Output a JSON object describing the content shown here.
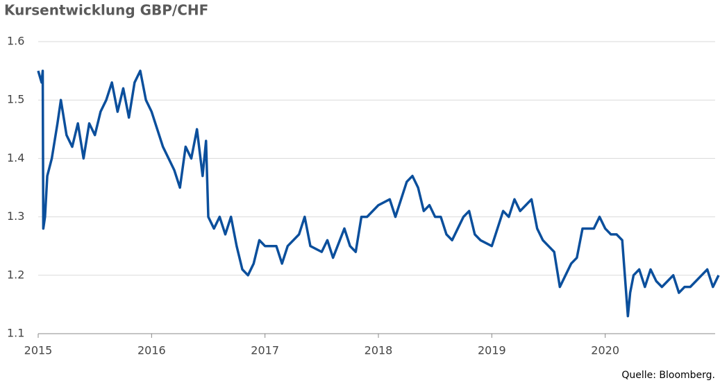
{
  "chart_data": {
    "type": "line",
    "title": "Kursentwicklung GBP/CHF",
    "source": "Quelle: Bloomberg.",
    "x": [
      2015.0,
      2015.03,
      2015.04,
      2015.045,
      2015.06,
      2015.08,
      2015.12,
      2015.17,
      2015.2,
      2015.25,
      2015.3,
      2015.35,
      2015.4,
      2015.45,
      2015.5,
      2015.55,
      2015.6,
      2015.65,
      2015.7,
      2015.75,
      2015.8,
      2015.85,
      2015.9,
      2015.95,
      2016.0,
      2016.05,
      2016.1,
      2016.15,
      2016.2,
      2016.25,
      2016.3,
      2016.35,
      2016.4,
      2016.45,
      2016.48,
      2016.5,
      2016.55,
      2016.6,
      2016.65,
      2016.7,
      2016.75,
      2016.8,
      2016.85,
      2016.9,
      2016.95,
      2017.0,
      2017.1,
      2017.15,
      2017.2,
      2017.3,
      2017.35,
      2017.4,
      2017.5,
      2017.55,
      2017.6,
      2017.7,
      2017.75,
      2017.8,
      2017.85,
      2017.9,
      2018.0,
      2018.1,
      2018.15,
      2018.2,
      2018.25,
      2018.3,
      2018.35,
      2018.4,
      2018.45,
      2018.5,
      2018.55,
      2018.6,
      2018.65,
      2018.7,
      2018.75,
      2018.8,
      2018.85,
      2018.9,
      2019.0,
      2019.05,
      2019.1,
      2019.15,
      2019.2,
      2019.25,
      2019.3,
      2019.35,
      2019.4,
      2019.45,
      2019.5,
      2019.55,
      2019.6,
      2019.65,
      2019.7,
      2019.75,
      2019.8,
      2019.85,
      2019.9,
      2019.95,
      2020.0,
      2020.05,
      2020.1,
      2020.15,
      2020.2,
      2020.22,
      2020.25,
      2020.3,
      2020.35,
      2020.4,
      2020.45,
      2020.5,
      2020.55,
      2020.6,
      2020.65,
      2020.7,
      2020.75,
      2020.8,
      2020.85,
      2020.9,
      2020.95,
      2021.0
    ],
    "series": [
      {
        "color": "#0b4f9c",
        "values": [
          1.55,
          1.53,
          1.55,
          1.28,
          1.3,
          1.37,
          1.4,
          1.46,
          1.5,
          1.44,
          1.42,
          1.46,
          1.4,
          1.46,
          1.44,
          1.48,
          1.5,
          1.53,
          1.48,
          1.52,
          1.47,
          1.53,
          1.55,
          1.5,
          1.48,
          1.45,
          1.42,
          1.4,
          1.38,
          1.35,
          1.42,
          1.4,
          1.45,
          1.37,
          1.43,
          1.3,
          1.28,
          1.3,
          1.27,
          1.3,
          1.25,
          1.21,
          1.2,
          1.22,
          1.26,
          1.25,
          1.25,
          1.22,
          1.25,
          1.27,
          1.3,
          1.25,
          1.24,
          1.26,
          1.23,
          1.28,
          1.25,
          1.24,
          1.3,
          1.3,
          1.32,
          1.33,
          1.3,
          1.33,
          1.36,
          1.37,
          1.35,
          1.31,
          1.32,
          1.3,
          1.3,
          1.27,
          1.26,
          1.28,
          1.3,
          1.31,
          1.27,
          1.26,
          1.25,
          1.28,
          1.31,
          1.3,
          1.33,
          1.31,
          1.32,
          1.33,
          1.28,
          1.26,
          1.25,
          1.24,
          1.18,
          1.2,
          1.22,
          1.23,
          1.28,
          1.28,
          1.28,
          1.3,
          1.28,
          1.27,
          1.27,
          1.26,
          1.13,
          1.17,
          1.2,
          1.21,
          1.18,
          1.21,
          1.19,
          1.18,
          1.19,
          1.2,
          1.17,
          1.18,
          1.18,
          1.19,
          1.2,
          1.21,
          1.18,
          1.2
        ]
      }
    ],
    "xlim": [
      2015,
      2021
    ],
    "xticks": [
      2015,
      2016,
      2017,
      2018,
      2019,
      2020
    ],
    "ylim": [
      1.1,
      1.6
    ],
    "yticks": [
      1.1,
      1.2,
      1.3,
      1.4,
      1.5,
      1.6
    ],
    "grid": true
  }
}
